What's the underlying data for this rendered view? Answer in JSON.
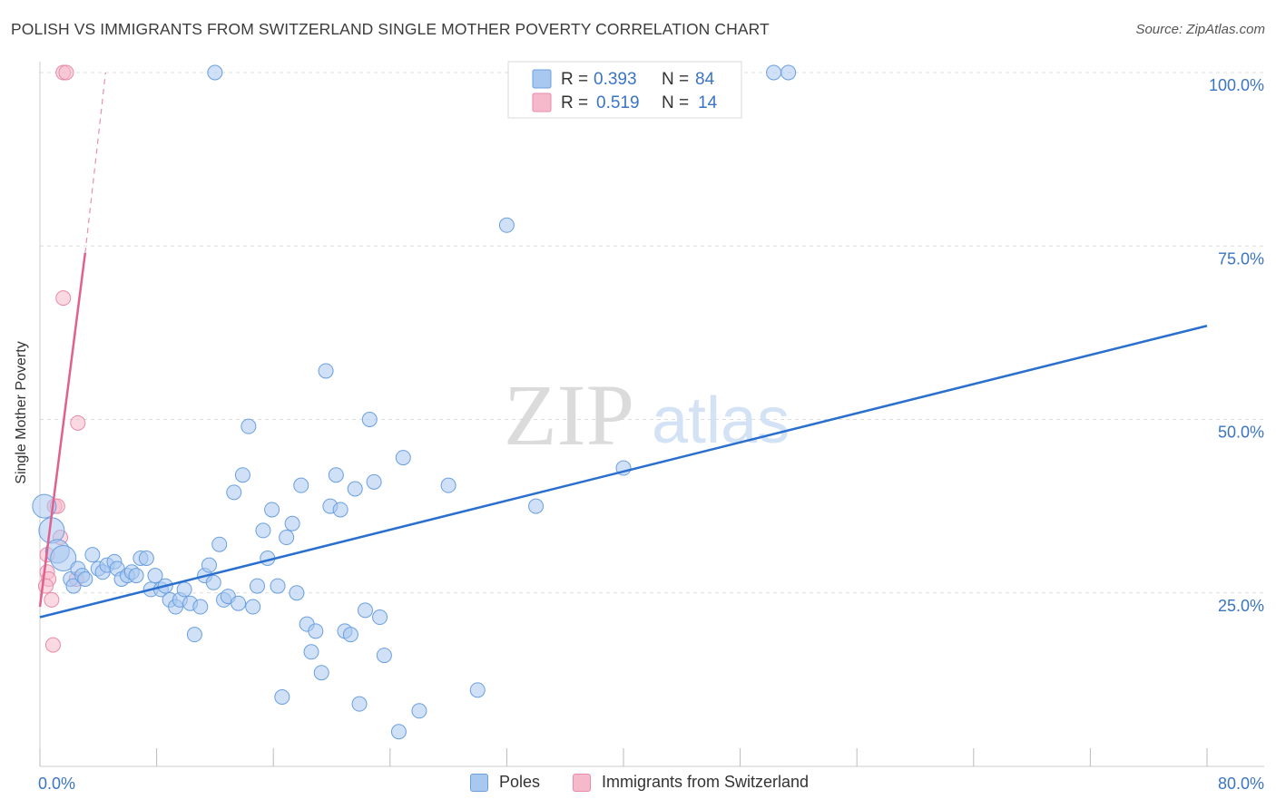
{
  "header": {
    "title": "POLISH VS IMMIGRANTS FROM SWITZERLAND SINGLE MOTHER POVERTY CORRELATION CHART",
    "source": "Source: ZipAtlas.com"
  },
  "watermark": {
    "zip": "ZIP",
    "atlas": "atlas"
  },
  "colors": {
    "blue_fill": "#a9c8f0",
    "blue_stroke": "#6a9fe0",
    "blue_line": "#2a6fd0",
    "pink_fill": "#f6b9cc",
    "pink_stroke": "#e88aa8",
    "pink_line": "#e0608e",
    "tick_text": "#3a75c4",
    "grid": "#dddddd"
  },
  "legend_top": {
    "rows": [
      {
        "r_label": "R =",
        "r_value": "0.393",
        "n_label": "N =",
        "n_value": "84"
      },
      {
        "r_label": "R =",
        "r_value": "0.519",
        "n_label": "N =",
        "n_value": "14"
      }
    ]
  },
  "legend_bottom": {
    "items": [
      "Poles",
      "Immigrants from Switzerland"
    ]
  },
  "chart_data": {
    "type": "scatter",
    "title": "POLISH VS IMMIGRANTS FROM SWITZERLAND SINGLE MOTHER POVERTY CORRELATION CHART",
    "xlabel": "",
    "ylabel": "Single Mother Poverty",
    "xlim": [
      0,
      80
    ],
    "ylim": [
      0,
      100
    ],
    "x_tick_labels": [
      "0.0%",
      "80.0%"
    ],
    "y_tick_labels": [
      "25.0%",
      "50.0%",
      "75.0%",
      "100.0%"
    ],
    "y_ticks": [
      25,
      50,
      75,
      100
    ],
    "grid": true,
    "series": [
      {
        "name": "Poles",
        "R": 0.393,
        "N": 84,
        "trend": {
          "x": [
            0,
            80
          ],
          "y": [
            21.5,
            63.5
          ]
        },
        "points": [
          [
            0.3,
            37.5
          ],
          [
            0.8,
            34
          ],
          [
            1.2,
            31
          ],
          [
            1.6,
            30
          ],
          [
            2.1,
            27
          ],
          [
            2.3,
            26
          ],
          [
            2.6,
            28.5
          ],
          [
            2.9,
            27.5
          ],
          [
            3.1,
            27
          ],
          [
            3.6,
            30.5
          ],
          [
            4.0,
            28.5
          ],
          [
            4.3,
            28
          ],
          [
            4.6,
            29
          ],
          [
            5.1,
            29.5
          ],
          [
            5.3,
            28.5
          ],
          [
            5.6,
            27
          ],
          [
            6.0,
            27.5
          ],
          [
            6.3,
            28
          ],
          [
            6.6,
            27.5
          ],
          [
            6.9,
            30
          ],
          [
            7.3,
            30
          ],
          [
            7.6,
            25.5
          ],
          [
            7.9,
            27.5
          ],
          [
            8.3,
            25.5
          ],
          [
            8.6,
            26
          ],
          [
            8.9,
            24
          ],
          [
            9.3,
            23
          ],
          [
            9.6,
            24
          ],
          [
            9.9,
            25.5
          ],
          [
            10.3,
            23.5
          ],
          [
            10.6,
            19
          ],
          [
            11.0,
            23
          ],
          [
            11.3,
            27.5
          ],
          [
            11.6,
            29
          ],
          [
            11.9,
            26.5
          ],
          [
            12.3,
            32
          ],
          [
            12.6,
            24
          ],
          [
            12.9,
            24.5
          ],
          [
            13.3,
            39.5
          ],
          [
            13.6,
            23.5
          ],
          [
            13.9,
            42
          ],
          [
            14.3,
            49
          ],
          [
            14.6,
            23
          ],
          [
            14.9,
            26
          ],
          [
            15.3,
            34
          ],
          [
            15.6,
            30
          ],
          [
            15.9,
            37
          ],
          [
            16.3,
            26
          ],
          [
            16.6,
            10
          ],
          [
            16.9,
            33
          ],
          [
            17.3,
            35
          ],
          [
            17.6,
            25
          ],
          [
            17.9,
            40.5
          ],
          [
            18.3,
            20.5
          ],
          [
            18.6,
            16.5
          ],
          [
            18.9,
            19.5
          ],
          [
            19.3,
            13.5
          ],
          [
            19.6,
            57
          ],
          [
            19.9,
            37.5
          ],
          [
            20.3,
            42
          ],
          [
            20.6,
            37
          ],
          [
            20.9,
            19.5
          ],
          [
            21.3,
            19
          ],
          [
            21.6,
            40
          ],
          [
            21.9,
            9
          ],
          [
            22.3,
            22.5
          ],
          [
            22.6,
            50
          ],
          [
            22.9,
            41
          ],
          [
            23.3,
            21.5
          ],
          [
            23.6,
            16
          ],
          [
            24.6,
            5
          ],
          [
            24.9,
            44.5
          ],
          [
            26.0,
            8
          ],
          [
            28.0,
            40.5
          ],
          [
            30.0,
            11
          ],
          [
            32.0,
            78
          ],
          [
            34.0,
            37.5
          ],
          [
            36.0,
            100
          ],
          [
            37.0,
            100
          ],
          [
            38.0,
            100
          ],
          [
            40.0,
            43
          ],
          [
            50.3,
            100
          ],
          [
            51.3,
            100
          ],
          [
            12.0,
            100
          ]
        ]
      },
      {
        "name": "Immigrants from Switzerland",
        "R": 0.519,
        "N": 14,
        "trend": {
          "x": [
            0,
            3.1
          ],
          "y": [
            23,
            74
          ]
        },
        "trend_dashed": {
          "x": [
            3.1,
            4.5
          ],
          "y": [
            74,
            100
          ]
        },
        "points": [
          [
            1.6,
            100
          ],
          [
            1.8,
            100
          ],
          [
            1.6,
            67.5
          ],
          [
            2.6,
            49.5
          ],
          [
            1.0,
            37.5
          ],
          [
            1.2,
            37.5
          ],
          [
            1.4,
            33
          ],
          [
            0.5,
            30.5
          ],
          [
            0.5,
            28
          ],
          [
            0.6,
            27
          ],
          [
            0.4,
            26
          ],
          [
            0.8,
            24
          ],
          [
            0.9,
            17.5
          ],
          [
            2.5,
            27
          ]
        ]
      }
    ]
  }
}
